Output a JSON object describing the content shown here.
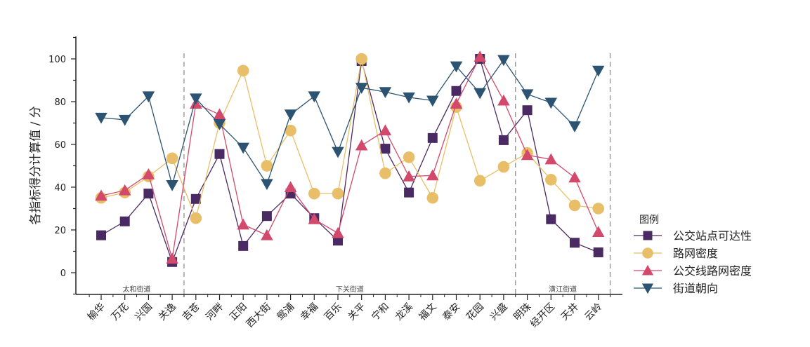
{
  "chart_data": {
    "type": "line",
    "title": "",
    "xlabel": "",
    "ylabel": "各指标得分计算值 / 分",
    "ylim": [
      -10,
      110
    ],
    "yticks": [
      0,
      20,
      40,
      60,
      80,
      100
    ],
    "grid": false,
    "legend_position": "right",
    "legend_title": "图例",
    "categories": [
      "榆华",
      "万花",
      "兴国",
      "关逸",
      "吉苍",
      "河畔",
      "正阳",
      "西大街",
      "鸳浦",
      "幸福",
      "百乐",
      "关平",
      "宁和",
      "龙溪",
      "福文",
      "泰安",
      "花园",
      "兴盛",
      "明珠",
      "经开区",
      "天井",
      "云岭"
    ],
    "regions": [
      {
        "name": "太和街道",
        "start": 0,
        "end": 3
      },
      {
        "name": "下关街道",
        "start": 4,
        "end": 17
      },
      {
        "name": "潢江街道",
        "start": 18,
        "end": 21
      }
    ],
    "series": [
      {
        "name": "公交站点可达性",
        "color": "#4a2a62",
        "marker": "square",
        "values": [
          17.5,
          24,
          37,
          5,
          34.5,
          55.5,
          12.5,
          26.5,
          37,
          25.5,
          15,
          99,
          58,
          37.5,
          63,
          85,
          100,
          62,
          76,
          25,
          14,
          9.5
        ]
      },
      {
        "name": "路网密度",
        "color": "#e8bf68",
        "marker": "circle",
        "values": [
          35,
          37.5,
          45,
          53.5,
          25.5,
          70,
          94.5,
          50,
          66.5,
          37,
          37,
          100,
          46.5,
          54,
          35,
          77.5,
          43,
          49.5,
          56,
          43.5,
          31.5,
          30
        ]
      },
      {
        "name": "公交线路网密度",
        "color": "#d2496c",
        "marker": "triangle-up",
        "values": [
          36,
          38.5,
          46,
          6.5,
          79,
          74,
          22.5,
          17.5,
          40,
          25,
          18.5,
          59.5,
          66.5,
          45,
          45.5,
          79,
          101,
          80.5,
          55,
          53,
          44.5,
          19
        ]
      },
      {
        "name": "街道朝向",
        "color": "#2c5472",
        "marker": "triangle-down",
        "values": [
          72.5,
          71.5,
          82.5,
          41,
          81.5,
          69.5,
          58.5,
          41.5,
          74,
          82.5,
          56.5,
          86.5,
          84.5,
          82,
          80.5,
          96.5,
          84,
          99.5,
          83.5,
          79.5,
          68.5,
          94.5
        ]
      }
    ]
  }
}
